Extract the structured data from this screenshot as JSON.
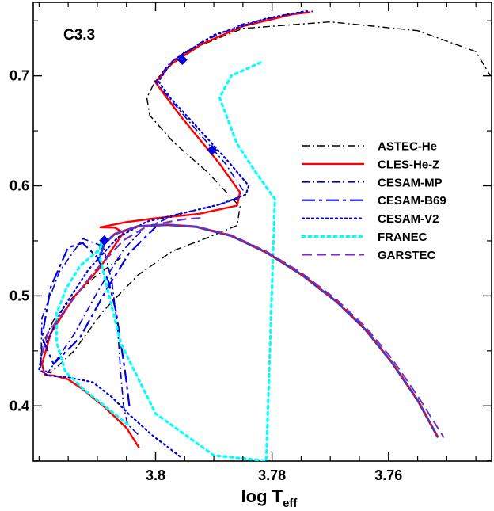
{
  "chart_data": {
    "type": "line",
    "panel_label": "C3.3",
    "xlabel_main": "log T",
    "xlabel_sub": "eff",
    "ylabel": "",
    "x_reversed": true,
    "xlim": [
      3.821,
      3.7423
    ],
    "ylim": [
      0.3498,
      0.7667
    ],
    "xticks": [
      3.8,
      3.78,
      3.76
    ],
    "xtick_labels": [
      "3.8",
      "3.78",
      "3.76"
    ],
    "xminor": [
      3.82,
      3.815,
      3.81,
      3.805,
      3.795,
      3.79,
      3.785,
      3.775,
      3.77,
      3.765,
      3.755,
      3.75,
      3.745
    ],
    "yticks": [
      0.4,
      0.5,
      0.6,
      0.7
    ],
    "ytick_labels": [
      "0.4",
      "0.5",
      "0.6",
      "0.7"
    ],
    "yminor": [
      0.35,
      0.45,
      0.55,
      0.65,
      0.75
    ],
    "legend_position": "right",
    "series": [
      {
        "name": "ASTEC-He",
        "color": "#000000",
        "dash": "9,4,2,4",
        "width": 1.4,
        "x": [
          3.806,
          3.81,
          3.814,
          3.8175,
          3.8195,
          3.8198,
          3.818,
          3.814,
          3.809,
          3.803,
          3.797,
          3.791,
          3.786,
          3.7855,
          3.791,
          3.797,
          3.801,
          3.8015,
          3.8,
          3.795,
          3.785,
          3.77,
          3.755,
          3.745,
          3.7425
        ],
        "y": [
          0.5345,
          0.519,
          0.5,
          0.478,
          0.455,
          0.432,
          0.43,
          0.45,
          0.486,
          0.519,
          0.541,
          0.553,
          0.564,
          0.581,
          0.612,
          0.64,
          0.664,
          0.68,
          0.696,
          0.722,
          0.743,
          0.749,
          0.741,
          0.722,
          0.7
        ]
      },
      {
        "name": "CLES-He-Z",
        "color": "#ff0000",
        "dash": "none",
        "width": 2.4,
        "x": [
          3.8028,
          3.805,
          3.809,
          3.8125,
          3.815,
          3.8174,
          3.819,
          3.8195,
          3.818,
          3.814,
          3.8095,
          3.807,
          3.8055,
          3.807,
          3.8095,
          3.805,
          3.8,
          3.7925,
          3.786,
          3.7855,
          3.789,
          3.7955,
          3.7985,
          3.8,
          3.7975,
          3.792,
          3.785,
          3.7765,
          3.7734
        ],
        "y": [
          0.3617,
          0.38,
          0.4,
          0.415,
          0.424,
          0.4275,
          0.428,
          0.438,
          0.466,
          0.499,
          0.526,
          0.546,
          0.5575,
          0.562,
          0.5623,
          0.567,
          0.5705,
          0.5745,
          0.582,
          0.594,
          0.62,
          0.662,
          0.683,
          0.694,
          0.71,
          0.729,
          0.745,
          0.7558,
          0.7578
        ]
      },
      {
        "name": "CESAM-MP",
        "color": "#0000dd",
        "dash": "9,4,2,4",
        "width": 1.6,
        "x": [
          3.803,
          3.8048,
          3.8055,
          3.806,
          3.8065,
          3.8075,
          3.809,
          3.8125,
          3.8165,
          3.8195,
          3.8197,
          3.8185,
          3.814,
          3.8095,
          3.8055,
          3.802,
          3.796,
          3.79,
          3.786,
          3.785,
          3.788,
          3.7945,
          3.798,
          3.8,
          3.7975,
          3.792,
          3.785,
          3.7765,
          3.773
        ],
        "y": [
          0.374,
          0.383,
          0.4,
          0.43,
          0.47,
          0.513,
          0.545,
          0.552,
          0.522,
          0.48,
          0.436,
          0.43,
          0.465,
          0.508,
          0.542,
          0.5615,
          0.5745,
          0.5815,
          0.588,
          0.596,
          0.62,
          0.66,
          0.682,
          0.695,
          0.712,
          0.731,
          0.747,
          0.7568,
          0.7585
        ]
      },
      {
        "name": "CESAM-B69",
        "color": "#0000dd",
        "dash": "16,5,4,5",
        "width": 2.2,
        "x": [
          3.8045,
          3.8052,
          3.806,
          3.8068,
          3.808,
          3.81,
          3.8125,
          3.815,
          3.818,
          3.8195,
          3.8175,
          3.813,
          3.8085,
          3.8045,
          3.8
        ],
        "y": [
          0.4,
          0.43,
          0.458,
          0.486,
          0.512,
          0.535,
          0.548,
          0.544,
          0.508,
          0.462,
          0.438,
          0.462,
          0.505,
          0.539,
          0.5625
        ]
      },
      {
        "name": "CESAM-V2",
        "color": "#0000dd",
        "dash": "2,4",
        "width": 2.2,
        "x": [
          3.7958,
          3.8005,
          3.8045,
          3.8075,
          3.8108,
          3.815,
          3.8185,
          3.82,
          3.8195,
          3.816,
          3.8115,
          3.8065,
          3.8015,
          3.795,
          3.789,
          3.7845,
          3.784,
          3.7875,
          3.7935,
          3.7975,
          3.7995,
          3.797,
          3.79,
          3.781,
          3.774
        ],
        "y": [
          0.354,
          0.373,
          0.392,
          0.408,
          0.4215,
          0.426,
          0.4275,
          0.433,
          0.449,
          0.488,
          0.524,
          0.553,
          0.5675,
          0.5755,
          0.583,
          0.592,
          0.6,
          0.622,
          0.657,
          0.68,
          0.695,
          0.714,
          0.737,
          0.752,
          0.759
        ]
      },
      {
        "name": "FRANEC",
        "color": "#00ffff",
        "dash": "3,5",
        "width": 3.2,
        "x": [
          3.8048,
          3.809,
          3.8125,
          3.8155,
          3.817,
          3.817,
          3.8153,
          3.813,
          3.8102,
          3.8088,
          3.8095,
          3.8095,
          3.806,
          3.8,
          3.79,
          3.781,
          3.7795,
          3.7825,
          3.786,
          3.789,
          3.787,
          3.7818
        ],
        "y": [
          0.383,
          0.401,
          0.4158,
          0.431,
          0.458,
          0.484,
          0.507,
          0.527,
          0.5395,
          0.5455,
          0.548,
          0.5335,
          0.457,
          0.393,
          0.355,
          0.35,
          0.588,
          0.61,
          0.638,
          0.68,
          0.7,
          0.7125
        ]
      },
      {
        "name": "GARSTEC",
        "color": "#7b2fbe",
        "dash": "12,6",
        "width": 2.2,
        "x": [
          3.8195,
          3.8185,
          3.815,
          3.8105,
          3.8055,
          3.8015,
          3.797,
          3.7945,
          3.7915
        ],
        "y": [
          0.447,
          0.466,
          0.491,
          0.522,
          0.5505,
          0.5632,
          0.568,
          0.57,
          0.571
        ]
      },
      {
        "name": "Main sequence band",
        "legend": false,
        "color": "#3b3bbf",
        "dash": "none",
        "width": 3.0,
        "x": [
          3.8095,
          3.8088,
          3.807,
          3.803,
          3.798,
          3.793,
          3.787,
          3.781,
          3.775,
          3.769,
          3.764,
          3.7595,
          3.755,
          3.7515
        ],
        "y": [
          0.5365,
          0.5475,
          0.5562,
          0.5632,
          0.5645,
          0.5628,
          0.5545,
          0.5395,
          0.5195,
          0.495,
          0.4695,
          0.44,
          0.405,
          0.3712
        ]
      },
      {
        "name": "Main sequence (red)",
        "legend": false,
        "color": "#ff0000",
        "dash": "8,6",
        "width": 1.4,
        "x": [
          3.8088,
          3.807,
          3.803,
          3.798,
          3.793,
          3.787,
          3.781,
          3.775,
          3.769,
          3.764,
          3.7595,
          3.755,
          3.7515
        ],
        "y": [
          0.5475,
          0.5562,
          0.5632,
          0.5645,
          0.5628,
          0.5545,
          0.5395,
          0.5195,
          0.495,
          0.4695,
          0.44,
          0.405,
          0.3712
        ]
      },
      {
        "name": "Main sequence (GARSTEC)",
        "legend": false,
        "color": "#7b2fbe",
        "dash": "12,6",
        "width": 2.0,
        "x": [
          3.8088,
          3.807,
          3.803,
          3.798,
          3.793,
          3.787,
          3.781,
          3.775,
          3.769,
          3.764,
          3.7595,
          3.755,
          3.7505
        ],
        "y": [
          0.5475,
          0.5565,
          0.5635,
          0.5648,
          0.5632,
          0.5552,
          0.5405,
          0.521,
          0.497,
          0.472,
          0.4435,
          0.409,
          0.3712
        ]
      }
    ],
    "markers": [
      {
        "name": "marker-1",
        "x": 3.8088,
        "y": 0.5503,
        "color": "#0000dd"
      },
      {
        "name": "marker-2",
        "x": 3.7954,
        "y": 0.7145,
        "color": "#0000dd"
      },
      {
        "name": "marker-3",
        "x": 3.7903,
        "y": 0.6326,
        "color": "#0000dd"
      }
    ]
  }
}
